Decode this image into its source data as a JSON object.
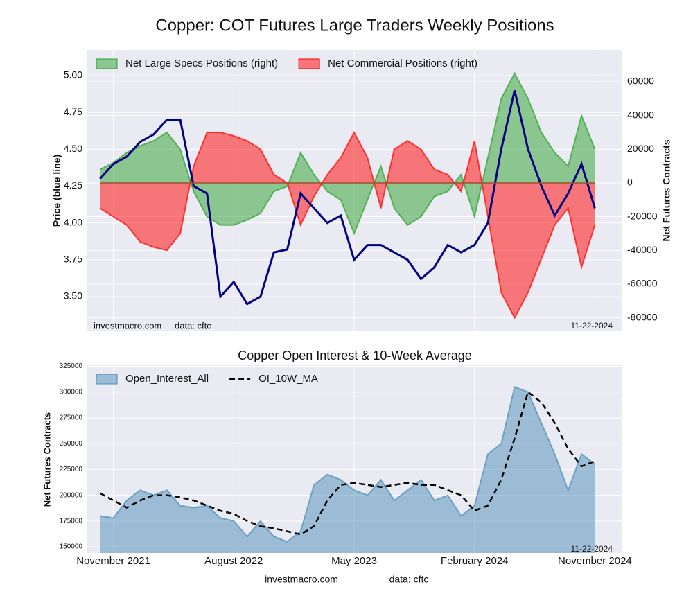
{
  "chart_data": [
    {
      "type": "line",
      "title": "Copper: COT Futures Large Traders Weekly Positions",
      "ylabel": "Price (blue line)",
      "y2label": "Net Futures Contracts",
      "annotations": [
        "investmacro.com",
        "data: cftc",
        "11-22-2024"
      ],
      "x": [
        "2021-10",
        "2021-11",
        "2021-12",
        "2022-01",
        "2022-02",
        "2022-03",
        "2022-04",
        "2022-05",
        "2022-06",
        "2022-07",
        "2022-08",
        "2022-09",
        "2022-10",
        "2022-11",
        "2022-12",
        "2023-01",
        "2023-02",
        "2023-03",
        "2023-04",
        "2023-05",
        "2023-06",
        "2023-07",
        "2023-08",
        "2023-09",
        "2023-10",
        "2023-11",
        "2023-12",
        "2024-01",
        "2024-02",
        "2024-03",
        "2024-04",
        "2024-05",
        "2024-06",
        "2024-07",
        "2024-08",
        "2024-09",
        "2024-10",
        "2024-11"
      ],
      "xlim": [
        "2021-09",
        "2025-01"
      ],
      "ylim": [
        3.265,
        5.174
      ],
      "yticks": [
        {
          "value": 3.5,
          "label": "3.50"
        },
        {
          "value": 3.75,
          "label": "3.75"
        },
        {
          "value": 4.0,
          "label": "4.00"
        },
        {
          "value": 4.25,
          "label": "4.25"
        },
        {
          "value": 4.5,
          "label": "4.50"
        },
        {
          "value": 4.75,
          "label": "4.75"
        },
        {
          "value": 5.0,
          "label": "5.00"
        }
      ],
      "y2lim": [
        -87950,
        78900
      ],
      "y2ticks": [
        -80000,
        -60000,
        -40000,
        -20000,
        0,
        20000,
        40000,
        60000
      ],
      "grid": true,
      "legend": "upper left",
      "series": [
        {
          "type": "area",
          "name": "Net Large Specs Positions (right)",
          "color": "#2ca02c",
          "axis": "y2",
          "values": [
            8000,
            12000,
            18000,
            22000,
            25000,
            30000,
            20000,
            -5000,
            -20000,
            -25000,
            -25000,
            -22000,
            -18000,
            -5000,
            -2000,
            18000,
            5000,
            -5000,
            -10000,
            -30000,
            -10000,
            10000,
            -15000,
            -25000,
            -20000,
            -8000,
            -5000,
            5000,
            -20000,
            15000,
            50000,
            65000,
            50000,
            30000,
            18000,
            10000,
            40000,
            20000
          ]
        },
        {
          "type": "area",
          "name": "Net Commercial Positions (right)",
          "color": "#ff0000",
          "axis": "y2",
          "values": [
            -15000,
            -20000,
            -25000,
            -35000,
            -38000,
            -40000,
            -30000,
            10000,
            30000,
            30000,
            28000,
            25000,
            20000,
            5000,
            0,
            -25000,
            -8000,
            5000,
            15000,
            30000,
            15000,
            -15000,
            20000,
            25000,
            20000,
            8000,
            5000,
            -5000,
            25000,
            -20000,
            -65000,
            -80000,
            -65000,
            -45000,
            -25000,
            -15000,
            -50000,
            -25000
          ]
        },
        {
          "type": "line",
          "color": "#000080",
          "axis": "y",
          "values": [
            4.3,
            4.4,
            4.45,
            4.55,
            4.6,
            4.7,
            4.7,
            4.25,
            4.2,
            3.5,
            3.6,
            3.45,
            3.5,
            3.8,
            3.82,
            4.2,
            4.1,
            4.0,
            4.05,
            3.75,
            3.85,
            3.85,
            3.8,
            3.75,
            3.62,
            3.7,
            3.85,
            3.8,
            3.85,
            4.0,
            4.5,
            4.9,
            4.5,
            4.25,
            4.05,
            4.2,
            4.4,
            4.1
          ]
        }
      ]
    },
    {
      "type": "area",
      "title": "Copper Open Interest & 10-Week Average",
      "ylabel": "Net Futures Contracts",
      "annotations": [
        "11-22-2024"
      ],
      "footer": [
        "investmacro.com",
        "data: cftc"
      ],
      "x": [
        "2021-10",
        "2021-11",
        "2021-12",
        "2022-01",
        "2022-02",
        "2022-03",
        "2022-04",
        "2022-05",
        "2022-06",
        "2022-07",
        "2022-08",
        "2022-09",
        "2022-10",
        "2022-11",
        "2022-12",
        "2023-01",
        "2023-02",
        "2023-03",
        "2023-04",
        "2023-05",
        "2023-06",
        "2023-07",
        "2023-08",
        "2023-09",
        "2023-10",
        "2023-11",
        "2023-12",
        "2024-01",
        "2024-02",
        "2024-03",
        "2024-04",
        "2024-05",
        "2024-06",
        "2024-07",
        "2024-08",
        "2024-09",
        "2024-10",
        "2024-11"
      ],
      "xlim": [
        "2021-09",
        "2025-01"
      ],
      "xticks": [
        {
          "value": "2021-11",
          "label": "November 2021"
        },
        {
          "value": "2022-08",
          "label": "August 2022"
        },
        {
          "value": "2023-05",
          "label": "May 2023"
        },
        {
          "value": "2024-02",
          "label": "February 2024"
        },
        {
          "value": "2024-11",
          "label": "November 2024"
        }
      ],
      "ylim": [
        144000,
        326000
      ],
      "yticks": [
        150000,
        175000,
        200000,
        225000,
        250000,
        275000,
        300000,
        325000
      ],
      "grid": true,
      "legend": "upper left",
      "series": [
        {
          "type": "area",
          "name": "Open_Interest_All",
          "color": "#4c8db5",
          "values": [
            180000,
            178000,
            195000,
            205000,
            200000,
            205000,
            190000,
            188000,
            190000,
            178000,
            175000,
            160000,
            175000,
            160000,
            155000,
            165000,
            210000,
            220000,
            215000,
            205000,
            200000,
            215000,
            195000,
            205000,
            215000,
            195000,
            200000,
            180000,
            190000,
            240000,
            250000,
            305000,
            300000,
            270000,
            240000,
            205000,
            240000,
            230000
          ]
        },
        {
          "type": "line",
          "name": "OI_10W_MA",
          "color": "#000000",
          "dash": true,
          "values": [
            202000,
            195000,
            188000,
            195000,
            200000,
            200000,
            198000,
            195000,
            190000,
            185000,
            182000,
            175000,
            170000,
            168000,
            165000,
            162000,
            170000,
            195000,
            210000,
            212000,
            210000,
            208000,
            210000,
            212000,
            210000,
            210000,
            205000,
            200000,
            185000,
            190000,
            215000,
            255000,
            300000,
            290000,
            270000,
            245000,
            228000,
            233000
          ]
        }
      ]
    }
  ]
}
